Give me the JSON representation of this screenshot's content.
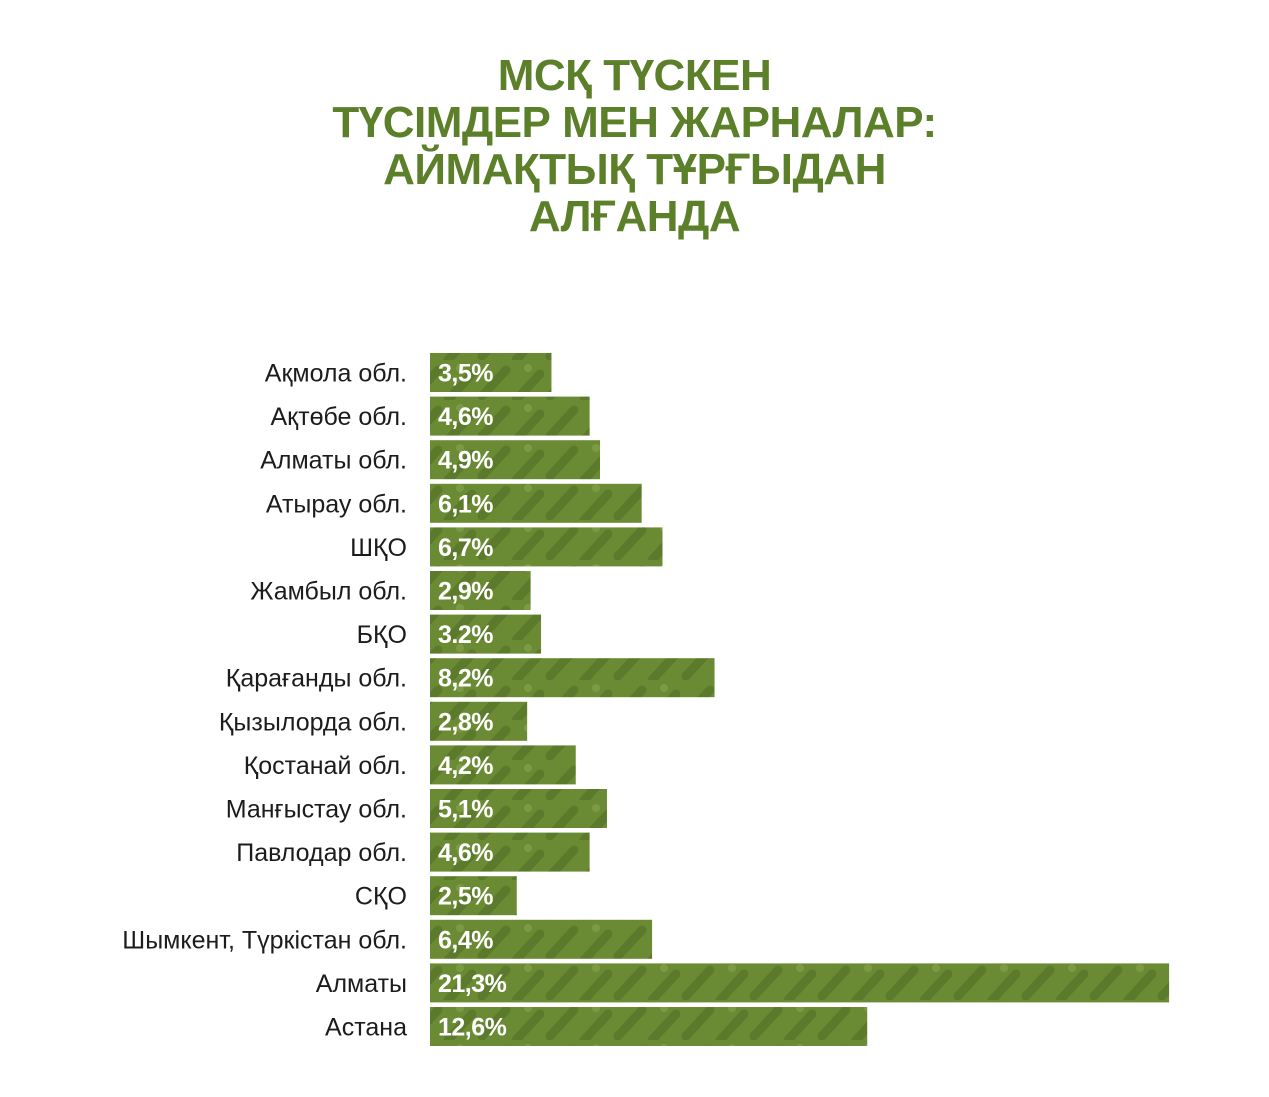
{
  "colors": {
    "title": "#5c7f2a",
    "bar": "#6a8b34",
    "bar_stripe": "#5b7a2b",
    "bar_dot": "#7c9a44",
    "value_text": "#ffffff",
    "label_text": "#1c1c1c"
  },
  "chart_data": {
    "type": "bar",
    "orientation": "horizontal",
    "title_lines": [
      "МСҚ ТҮСКЕН",
      "ТҮСІМДЕР МЕН ЖАРНАЛАР:",
      "АЙМАҚТЫҚ ТҰРҒЫДАН",
      "АЛҒАНДА"
    ],
    "categories": [
      "Ақмола обл.",
      "Ақтөбе обл.",
      "Алматы обл.",
      "Атырау обл.",
      "ШҚО",
      "Жамбыл обл.",
      "БҚО",
      "Қарағанды обл.",
      "Қызылорда обл.",
      "Қостанай обл.",
      "Манғыстау обл.",
      "Павлодар обл.",
      "СҚО",
      "Шымкент, Түркістан обл.",
      "Алматы",
      "Астана"
    ],
    "values": [
      3.5,
      4.6,
      4.9,
      6.1,
      6.7,
      2.9,
      3.2,
      8.2,
      2.8,
      4.2,
      5.1,
      4.6,
      2.5,
      6.4,
      21.3,
      12.6
    ],
    "value_labels": [
      "3,5%",
      "4,6%",
      "4,9%",
      "6,1%",
      "6,7%",
      "2,9%",
      "3.2%",
      "8,2%",
      "2,8%",
      "4,2%",
      "5,1%",
      "4,6%",
      "2,5%",
      "6,4%",
      "21,3%",
      "12,6%"
    ],
    "unit": "%",
    "grid": false,
    "legend": "none"
  }
}
